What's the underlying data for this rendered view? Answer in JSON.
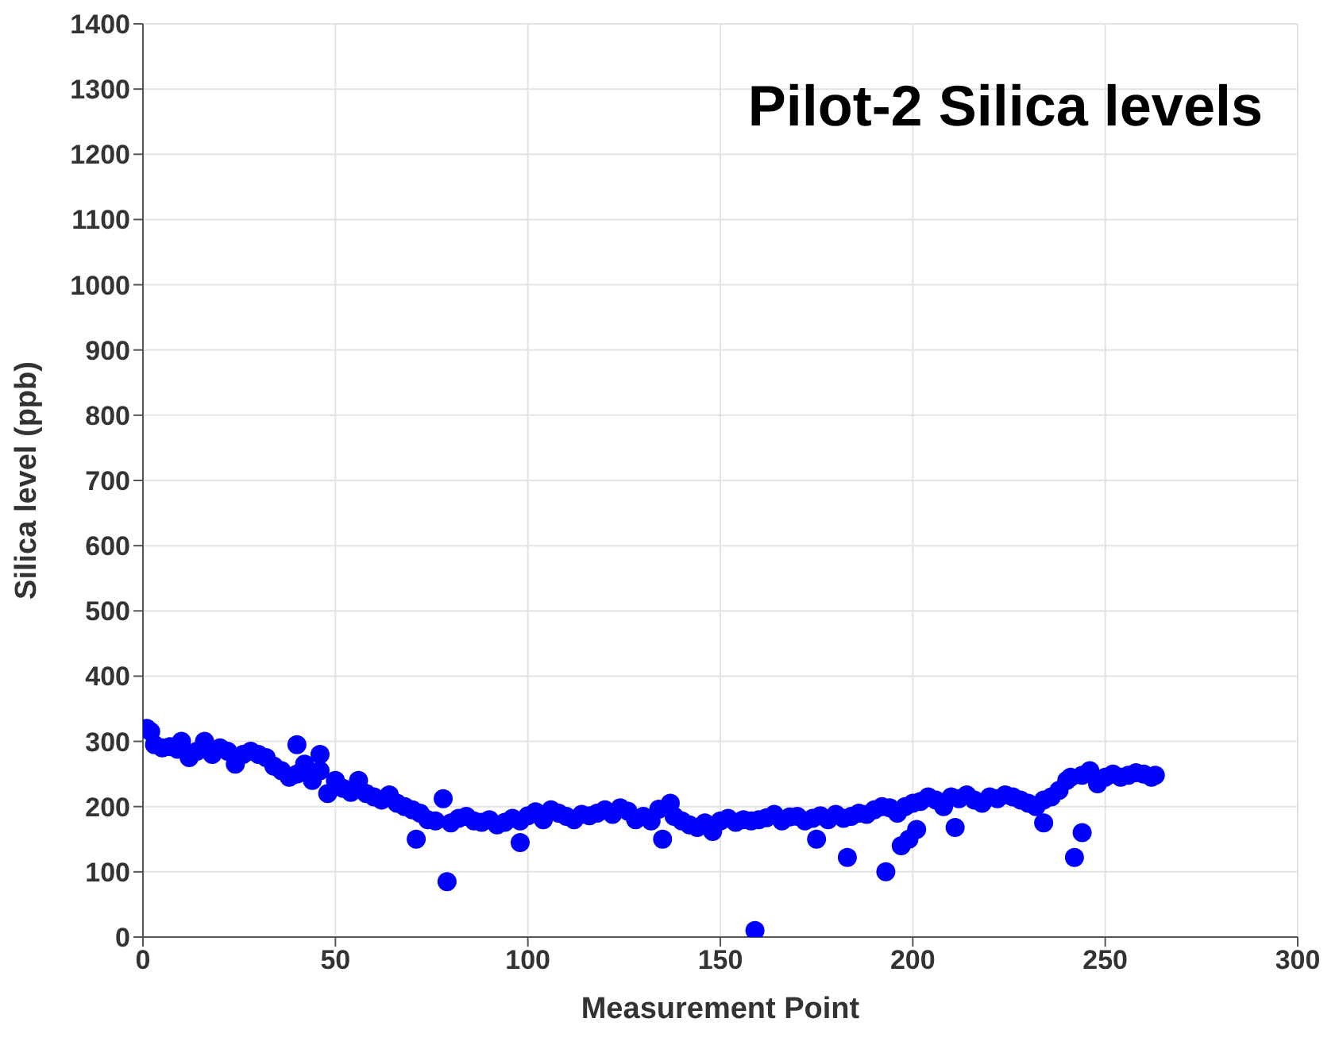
{
  "chart_data": {
    "type": "scatter",
    "title": "Pilot-2 Silica levels",
    "xlabel": "Measurement Point",
    "ylabel": "Silica level (ppb)",
    "xlim": [
      0,
      300
    ],
    "xticks": [
      0,
      50,
      100,
      150,
      200,
      250,
      300
    ],
    "ylim": [
      0,
      1400
    ],
    "yticks": [
      0,
      100,
      200,
      300,
      400,
      500,
      600,
      700,
      800,
      900,
      1000,
      1100,
      1200,
      1300,
      1400
    ],
    "grid": true,
    "marker": "circle",
    "series": [
      {
        "color": "#0000ff",
        "x": [
          1,
          2,
          3,
          5,
          7,
          9,
          10,
          12,
          14,
          16,
          18,
          20,
          22,
          24,
          26,
          28,
          30,
          32,
          34,
          36,
          38,
          40,
          40,
          42,
          44,
          46,
          46,
          48,
          50,
          52,
          54,
          56,
          58,
          60,
          62,
          64,
          66,
          68,
          70,
          71,
          72,
          74,
          76,
          78,
          79,
          80,
          82,
          84,
          86,
          88,
          90,
          92,
          94,
          96,
          98,
          98,
          100,
          102,
          104,
          106,
          108,
          110,
          112,
          114,
          116,
          118,
          120,
          122,
          124,
          126,
          128,
          130,
          132,
          134,
          135,
          137,
          138,
          140,
          142,
          144,
          146,
          148,
          150,
          152,
          154,
          156,
          158,
          159,
          160,
          162,
          164,
          166,
          168,
          170,
          172,
          174,
          175,
          176,
          178,
          180,
          182,
          183,
          184,
          186,
          188,
          190,
          192,
          193,
          194,
          196,
          197,
          198,
          199,
          200,
          201,
          202,
          204,
          206,
          208,
          210,
          211,
          212,
          214,
          216,
          218,
          220,
          222,
          224,
          226,
          228,
          230,
          232,
          234,
          234,
          236,
          238,
          240,
          241,
          242,
          244,
          244,
          246,
          248,
          250,
          252,
          254,
          256,
          258,
          260,
          262,
          263
        ],
        "values": [
          320,
          315,
          295,
          290,
          292,
          288,
          300,
          275,
          285,
          300,
          280,
          290,
          285,
          265,
          280,
          285,
          280,
          275,
          262,
          255,
          245,
          250,
          295,
          265,
          240,
          255,
          280,
          220,
          240,
          228,
          222,
          240,
          220,
          215,
          210,
          218,
          205,
          200,
          195,
          150,
          190,
          180,
          178,
          212,
          85,
          175,
          182,
          185,
          178,
          176,
          180,
          172,
          176,
          182,
          178,
          145,
          186,
          192,
          180,
          195,
          190,
          185,
          180,
          188,
          186,
          190,
          195,
          188,
          198,
          193,
          180,
          185,
          178,
          196,
          150,
          205,
          185,
          178,
          172,
          168,
          175,
          162,
          178,
          182,
          176,
          180,
          178,
          10,
          180,
          183,
          188,
          178,
          184,
          185,
          178,
          182,
          150,
          186,
          180,
          188,
          182,
          122,
          185,
          190,
          188,
          195,
          200,
          100,
          198,
          190,
          140,
          200,
          150,
          205,
          165,
          208,
          215,
          210,
          200,
          215,
          168,
          212,
          218,
          210,
          205,
          215,
          212,
          218,
          215,
          210,
          205,
          200,
          175,
          210,
          215,
          225,
          240,
          245,
          122,
          160,
          248,
          255,
          235,
          245,
          250,
          245,
          248,
          252,
          250,
          245,
          248
        ]
      }
    ]
  }
}
